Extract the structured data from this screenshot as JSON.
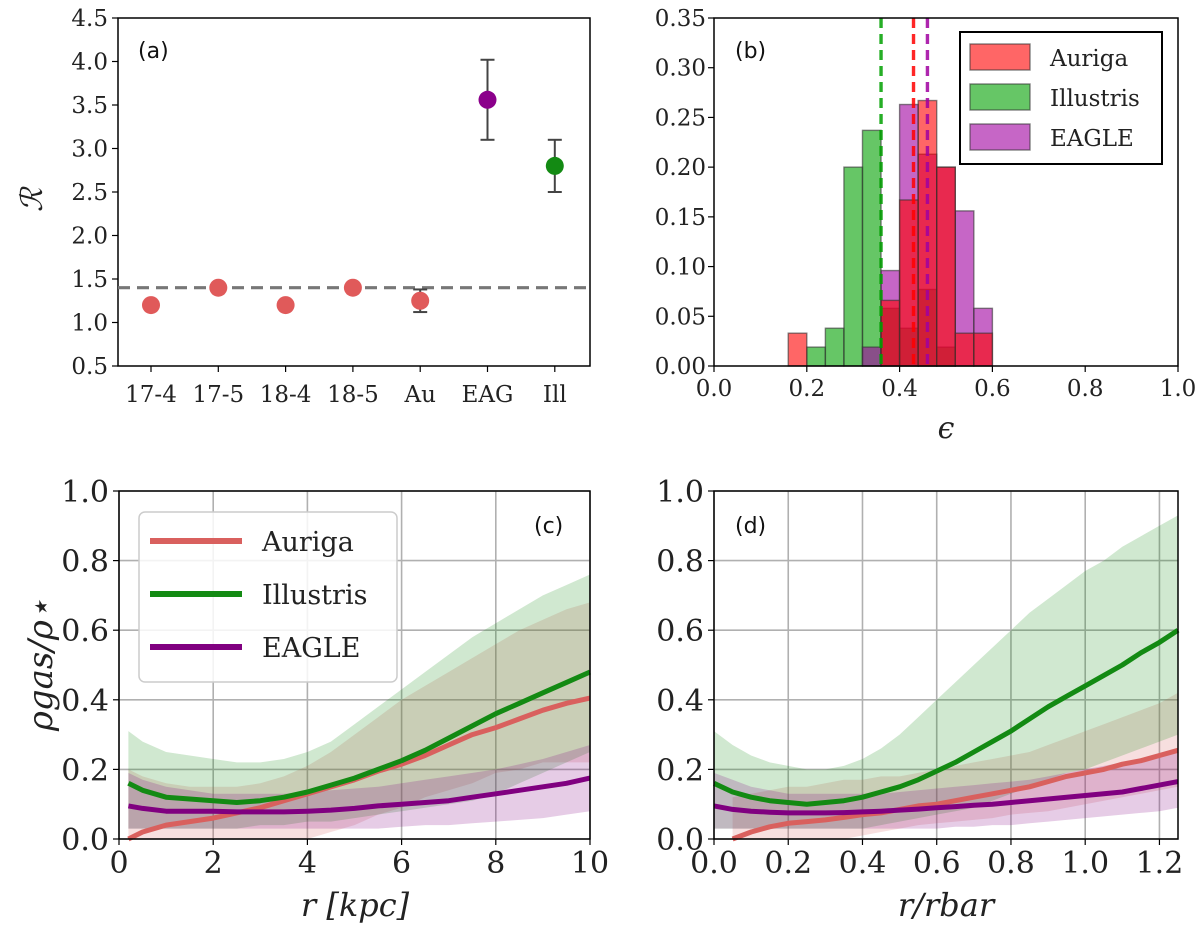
{
  "chart_data": [
    {
      "panel": "(a)",
      "type": "scatter",
      "ylabel": "ℛ",
      "categories": [
        "17-4",
        "17-5",
        "18-4",
        "18-5",
        "Au",
        "EAG",
        "Ill"
      ],
      "ylim": [
        0.5,
        4.5
      ],
      "yticks": [
        "0.5",
        "1.0",
        "1.5",
        "2.0",
        "2.5",
        "3.0",
        "3.5",
        "4.0",
        "4.5"
      ],
      "points": [
        {
          "cat": "17-4",
          "y": 1.2,
          "err": null,
          "color": "#e05a5a"
        },
        {
          "cat": "17-5",
          "y": 1.4,
          "err": null,
          "color": "#e05a5a"
        },
        {
          "cat": "18-4",
          "y": 1.2,
          "err": null,
          "color": "#e05a5a"
        },
        {
          "cat": "18-5",
          "y": 1.4,
          "err": null,
          "color": "#e05a5a"
        },
        {
          "cat": "Au",
          "y": 1.25,
          "err": 0.13,
          "color": "#e05a5a"
        },
        {
          "cat": "EAG",
          "y": 3.56,
          "err": 0.46,
          "color": "#8b008b"
        },
        {
          "cat": "Ill",
          "y": 2.8,
          "err": 0.3,
          "color": "#138a13"
        }
      ],
      "hline": 1.4,
      "grid": false
    },
    {
      "panel": "(b)",
      "type": "bar",
      "xlabel": "ϵ",
      "xlim": [
        0.0,
        1.0
      ],
      "ylim": [
        0.0,
        0.35
      ],
      "xticks": [
        "0.0",
        "0.2",
        "0.4",
        "0.6",
        "0.8",
        "1.0"
      ],
      "yticks": [
        "0.00",
        "0.05",
        "0.10",
        "0.15",
        "0.20",
        "0.25",
        "0.30",
        "0.35"
      ],
      "bin_width": 0.04,
      "series": [
        {
          "name": "Auriga",
          "color": "#ff0000",
          "bin_starts": [
            0.16,
            0.2,
            0.24,
            0.28,
            0.32,
            0.36,
            0.4,
            0.44,
            0.48,
            0.52,
            0.56
          ],
          "values": [
            0.033,
            0.0,
            0.0,
            0.0,
            0.0,
            0.066,
            0.167,
            0.267,
            0.2,
            0.033,
            0.033
          ],
          "mean": 0.43
        },
        {
          "name": "Illustris",
          "color": "#00a000",
          "bin_starts": [
            0.16,
            0.2,
            0.24,
            0.28,
            0.32,
            0.36,
            0.4,
            0.44,
            0.48,
            0.52,
            0.56
          ],
          "values": [
            0.0,
            0.019,
            0.038,
            0.2,
            0.237,
            0.058,
            0.038,
            0.077,
            0.019,
            0.0,
            0.0
          ],
          "mean": 0.36
        },
        {
          "name": "EAGLE",
          "color": "#a000a0",
          "bin_starts": [
            0.16,
            0.2,
            0.24,
            0.28,
            0.32,
            0.36,
            0.4,
            0.44,
            0.48,
            0.52,
            0.56
          ],
          "values": [
            0.0,
            0.0,
            0.0,
            0.0,
            0.019,
            0.096,
            0.263,
            0.213,
            0.2,
            0.156,
            0.058
          ],
          "mean": 0.46
        }
      ],
      "legend": [
        "Auriga",
        "Illustris",
        "EAGLE"
      ],
      "legend_position": "top-right",
      "grid": false
    },
    {
      "panel": "(c)",
      "type": "line",
      "xlabel": "r [kpc]",
      "ylabel": "ρgas/ρ⋆",
      "xlim": [
        0,
        10
      ],
      "ylim": [
        0.0,
        1.0
      ],
      "xticks": [
        "0",
        "2",
        "4",
        "6",
        "8",
        "10"
      ],
      "yticks": [
        "0.0",
        "0.2",
        "0.4",
        "0.6",
        "0.8",
        "1.0"
      ],
      "x": [
        0.2,
        0.5,
        1,
        1.5,
        2,
        2.5,
        3,
        3.5,
        4,
        4.5,
        5,
        5.5,
        6,
        6.5,
        7,
        7.5,
        8,
        8.5,
        9,
        9.5,
        10
      ],
      "series": [
        {
          "name": "Auriga",
          "color": "#d9605e",
          "values": [
            0.0,
            0.02,
            0.04,
            0.05,
            0.06,
            0.075,
            0.09,
            0.11,
            0.13,
            0.15,
            0.17,
            0.195,
            0.215,
            0.24,
            0.27,
            0.3,
            0.32,
            0.345,
            0.37,
            0.39,
            0.405
          ],
          "lower": [
            0.0,
            0.0,
            0.0,
            0.0,
            0.0,
            0.0,
            0.0,
            0.0,
            0.0,
            0.02,
            0.04,
            0.07,
            0.09,
            0.12,
            0.14,
            0.16,
            0.19,
            0.2,
            0.22,
            0.22,
            0.22
          ],
          "upper": [
            0.2,
            0.18,
            0.16,
            0.15,
            0.15,
            0.15,
            0.16,
            0.18,
            0.21,
            0.25,
            0.3,
            0.35,
            0.4,
            0.44,
            0.48,
            0.52,
            0.56,
            0.6,
            0.63,
            0.66,
            0.68
          ]
        },
        {
          "name": "Illustris",
          "color": "#138a13",
          "values": [
            0.16,
            0.14,
            0.12,
            0.115,
            0.11,
            0.105,
            0.11,
            0.12,
            0.135,
            0.155,
            0.175,
            0.2,
            0.225,
            0.255,
            0.29,
            0.325,
            0.36,
            0.39,
            0.42,
            0.45,
            0.48
          ],
          "lower": [
            0.03,
            0.03,
            0.03,
            0.03,
            0.03,
            0.03,
            0.04,
            0.04,
            0.05,
            0.05,
            0.06,
            0.07,
            0.08,
            0.09,
            0.1,
            0.11,
            0.13,
            0.16,
            0.19,
            0.22,
            0.25
          ],
          "upper": [
            0.31,
            0.28,
            0.25,
            0.24,
            0.23,
            0.22,
            0.22,
            0.23,
            0.25,
            0.28,
            0.33,
            0.38,
            0.43,
            0.48,
            0.53,
            0.58,
            0.62,
            0.66,
            0.7,
            0.73,
            0.76
          ]
        },
        {
          "name": "EAGLE",
          "color": "#800080",
          "values": [
            0.095,
            0.088,
            0.08,
            0.08,
            0.08,
            0.078,
            0.078,
            0.078,
            0.08,
            0.083,
            0.088,
            0.095,
            0.1,
            0.105,
            0.11,
            0.12,
            0.13,
            0.14,
            0.15,
            0.16,
            0.175
          ],
          "lower": [
            0.03,
            0.03,
            0.03,
            0.03,
            0.03,
            0.03,
            0.03,
            0.03,
            0.03,
            0.03,
            0.03,
            0.03,
            0.035,
            0.04,
            0.04,
            0.045,
            0.05,
            0.055,
            0.06,
            0.07,
            0.08
          ],
          "upper": [
            0.19,
            0.17,
            0.15,
            0.14,
            0.13,
            0.13,
            0.13,
            0.13,
            0.135,
            0.14,
            0.145,
            0.15,
            0.16,
            0.17,
            0.18,
            0.19,
            0.2,
            0.215,
            0.23,
            0.25,
            0.27
          ]
        }
      ],
      "legend": [
        "Auriga",
        "Illustris",
        "EAGLE"
      ],
      "legend_position": "top-left",
      "grid": true
    },
    {
      "panel": "(d)",
      "type": "line",
      "xlabel": "r/rbar",
      "xlim": [
        0.0,
        1.25
      ],
      "ylim": [
        0.0,
        1.0
      ],
      "xticks": [
        "0.0",
        "0.2",
        "0.4",
        "0.6",
        "0.8",
        "1.0",
        "1.2"
      ],
      "yticks": [
        "0.0",
        "0.2",
        "0.4",
        "0.6",
        "0.8",
        "1.0"
      ],
      "x": [
        0.0,
        0.05,
        0.1,
        0.15,
        0.2,
        0.25,
        0.3,
        0.35,
        0.4,
        0.45,
        0.5,
        0.55,
        0.6,
        0.65,
        0.7,
        0.75,
        0.8,
        0.85,
        0.9,
        0.95,
        1.0,
        1.05,
        1.1,
        1.15,
        1.2,
        1.25
      ],
      "series": [
        {
          "name": "Auriga",
          "color": "#d9605e",
          "values": [
            null,
            0.0,
            0.02,
            0.035,
            0.045,
            0.05,
            0.055,
            0.062,
            0.07,
            0.075,
            0.085,
            0.095,
            0.1,
            0.11,
            0.12,
            0.13,
            0.14,
            0.15,
            0.165,
            0.18,
            0.19,
            0.2,
            0.215,
            0.225,
            0.24,
            0.255
          ],
          "lower": [
            null,
            0.0,
            0.0,
            0.0,
            0.0,
            0.0,
            0.0,
            0.0,
            0.01,
            0.02,
            0.03,
            0.04,
            0.045,
            0.05,
            0.055,
            0.06,
            0.07,
            0.075,
            0.08,
            0.09,
            0.1,
            0.11,
            0.12,
            0.13,
            0.14,
            0.15
          ],
          "upper": [
            null,
            0.12,
            0.13,
            0.14,
            0.15,
            0.15,
            0.16,
            0.17,
            0.17,
            0.18,
            0.18,
            0.19,
            0.2,
            0.21,
            0.22,
            0.23,
            0.24,
            0.25,
            0.27,
            0.29,
            0.31,
            0.33,
            0.35,
            0.37,
            0.39,
            0.42
          ]
        },
        {
          "name": "Illustris",
          "color": "#138a13",
          "values": [
            0.16,
            0.135,
            0.12,
            0.11,
            0.105,
            0.1,
            0.105,
            0.11,
            0.12,
            0.135,
            0.15,
            0.17,
            0.195,
            0.22,
            0.25,
            0.28,
            0.31,
            0.345,
            0.38,
            0.41,
            0.44,
            0.47,
            0.5,
            0.535,
            0.565,
            0.6
          ],
          "lower": [
            0.03,
            0.03,
            0.03,
            0.03,
            0.03,
            0.03,
            0.03,
            0.03,
            0.03,
            0.04,
            0.05,
            0.06,
            0.07,
            0.08,
            0.09,
            0.11,
            0.13,
            0.15,
            0.17,
            0.19,
            0.2,
            0.22,
            0.24,
            0.26,
            0.28,
            0.3
          ],
          "upper": [
            0.31,
            0.27,
            0.24,
            0.22,
            0.21,
            0.2,
            0.2,
            0.21,
            0.23,
            0.26,
            0.3,
            0.35,
            0.4,
            0.45,
            0.5,
            0.55,
            0.6,
            0.65,
            0.69,
            0.73,
            0.77,
            0.8,
            0.84,
            0.87,
            0.9,
            0.93
          ]
        },
        {
          "name": "EAGLE",
          "color": "#800080",
          "values": [
            0.095,
            0.085,
            0.08,
            0.077,
            0.075,
            0.075,
            0.075,
            0.076,
            0.078,
            0.08,
            0.083,
            0.086,
            0.09,
            0.093,
            0.097,
            0.1,
            0.105,
            0.11,
            0.115,
            0.12,
            0.125,
            0.13,
            0.135,
            0.145,
            0.155,
            0.165
          ],
          "lower": [
            0.03,
            0.03,
            0.03,
            0.03,
            0.03,
            0.03,
            0.03,
            0.03,
            0.03,
            0.03,
            0.03,
            0.03,
            0.03,
            0.035,
            0.035,
            0.04,
            0.04,
            0.045,
            0.05,
            0.055,
            0.06,
            0.065,
            0.07,
            0.075,
            0.08,
            0.09
          ],
          "upper": [
            0.19,
            0.17,
            0.15,
            0.14,
            0.13,
            0.13,
            0.13,
            0.13,
            0.13,
            0.13,
            0.135,
            0.14,
            0.145,
            0.15,
            0.155,
            0.16,
            0.165,
            0.17,
            0.18,
            0.19,
            0.2,
            0.21,
            0.22,
            0.23,
            0.245,
            0.26
          ]
        }
      ],
      "grid": true
    }
  ]
}
